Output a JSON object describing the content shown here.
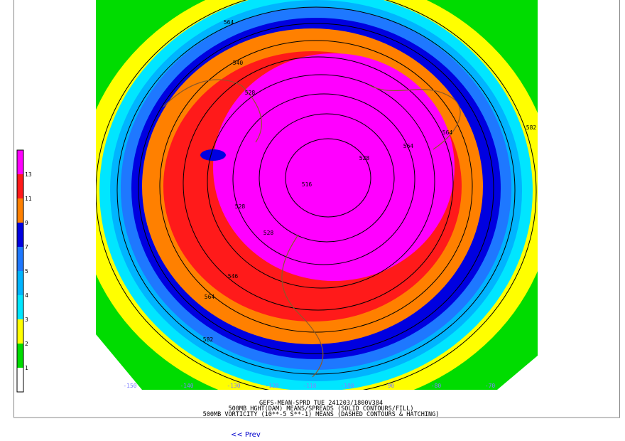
{
  "legend": {
    "levels": [
      {
        "label": "13",
        "color": "#ff00ff"
      },
      {
        "label": "11",
        "color": "#ff1a1a"
      },
      {
        "label": "9",
        "color": "#ff8000"
      },
      {
        "label": "7",
        "color": "#0000e0"
      },
      {
        "label": "5",
        "color": "#1e78ff"
      },
      {
        "label": "4",
        "color": "#00b4ff"
      },
      {
        "label": "3",
        "color": "#00e6ff"
      },
      {
        "label": "2",
        "color": "#ffff00"
      },
      {
        "label": "1",
        "color": "#00dc00"
      }
    ],
    "bottom_color": "#ffffff"
  },
  "contour_labels": [
    "564",
    "540",
    "528",
    "582",
    "564",
    "564",
    "528",
    "516",
    "528",
    "528",
    "546",
    "564",
    "582"
  ],
  "longitude_labels": [
    "-150",
    "-140",
    "-130",
    "-120",
    "-110",
    "-100",
    "-90",
    "-80",
    "-70"
  ],
  "caption": [
    "GEFS-MEAN-SPRD TUE 241203/1800V384",
    "500MB HGHT(DAM) MEANS/SPREADS (SOLID CONTOURS/FILL)",
    "500MB VORTICITY (10**-5 S**-1) MEANS (DASHED CONTOURS & HATCHING)"
  ],
  "nav": {
    "prev": "<< Prev"
  }
}
